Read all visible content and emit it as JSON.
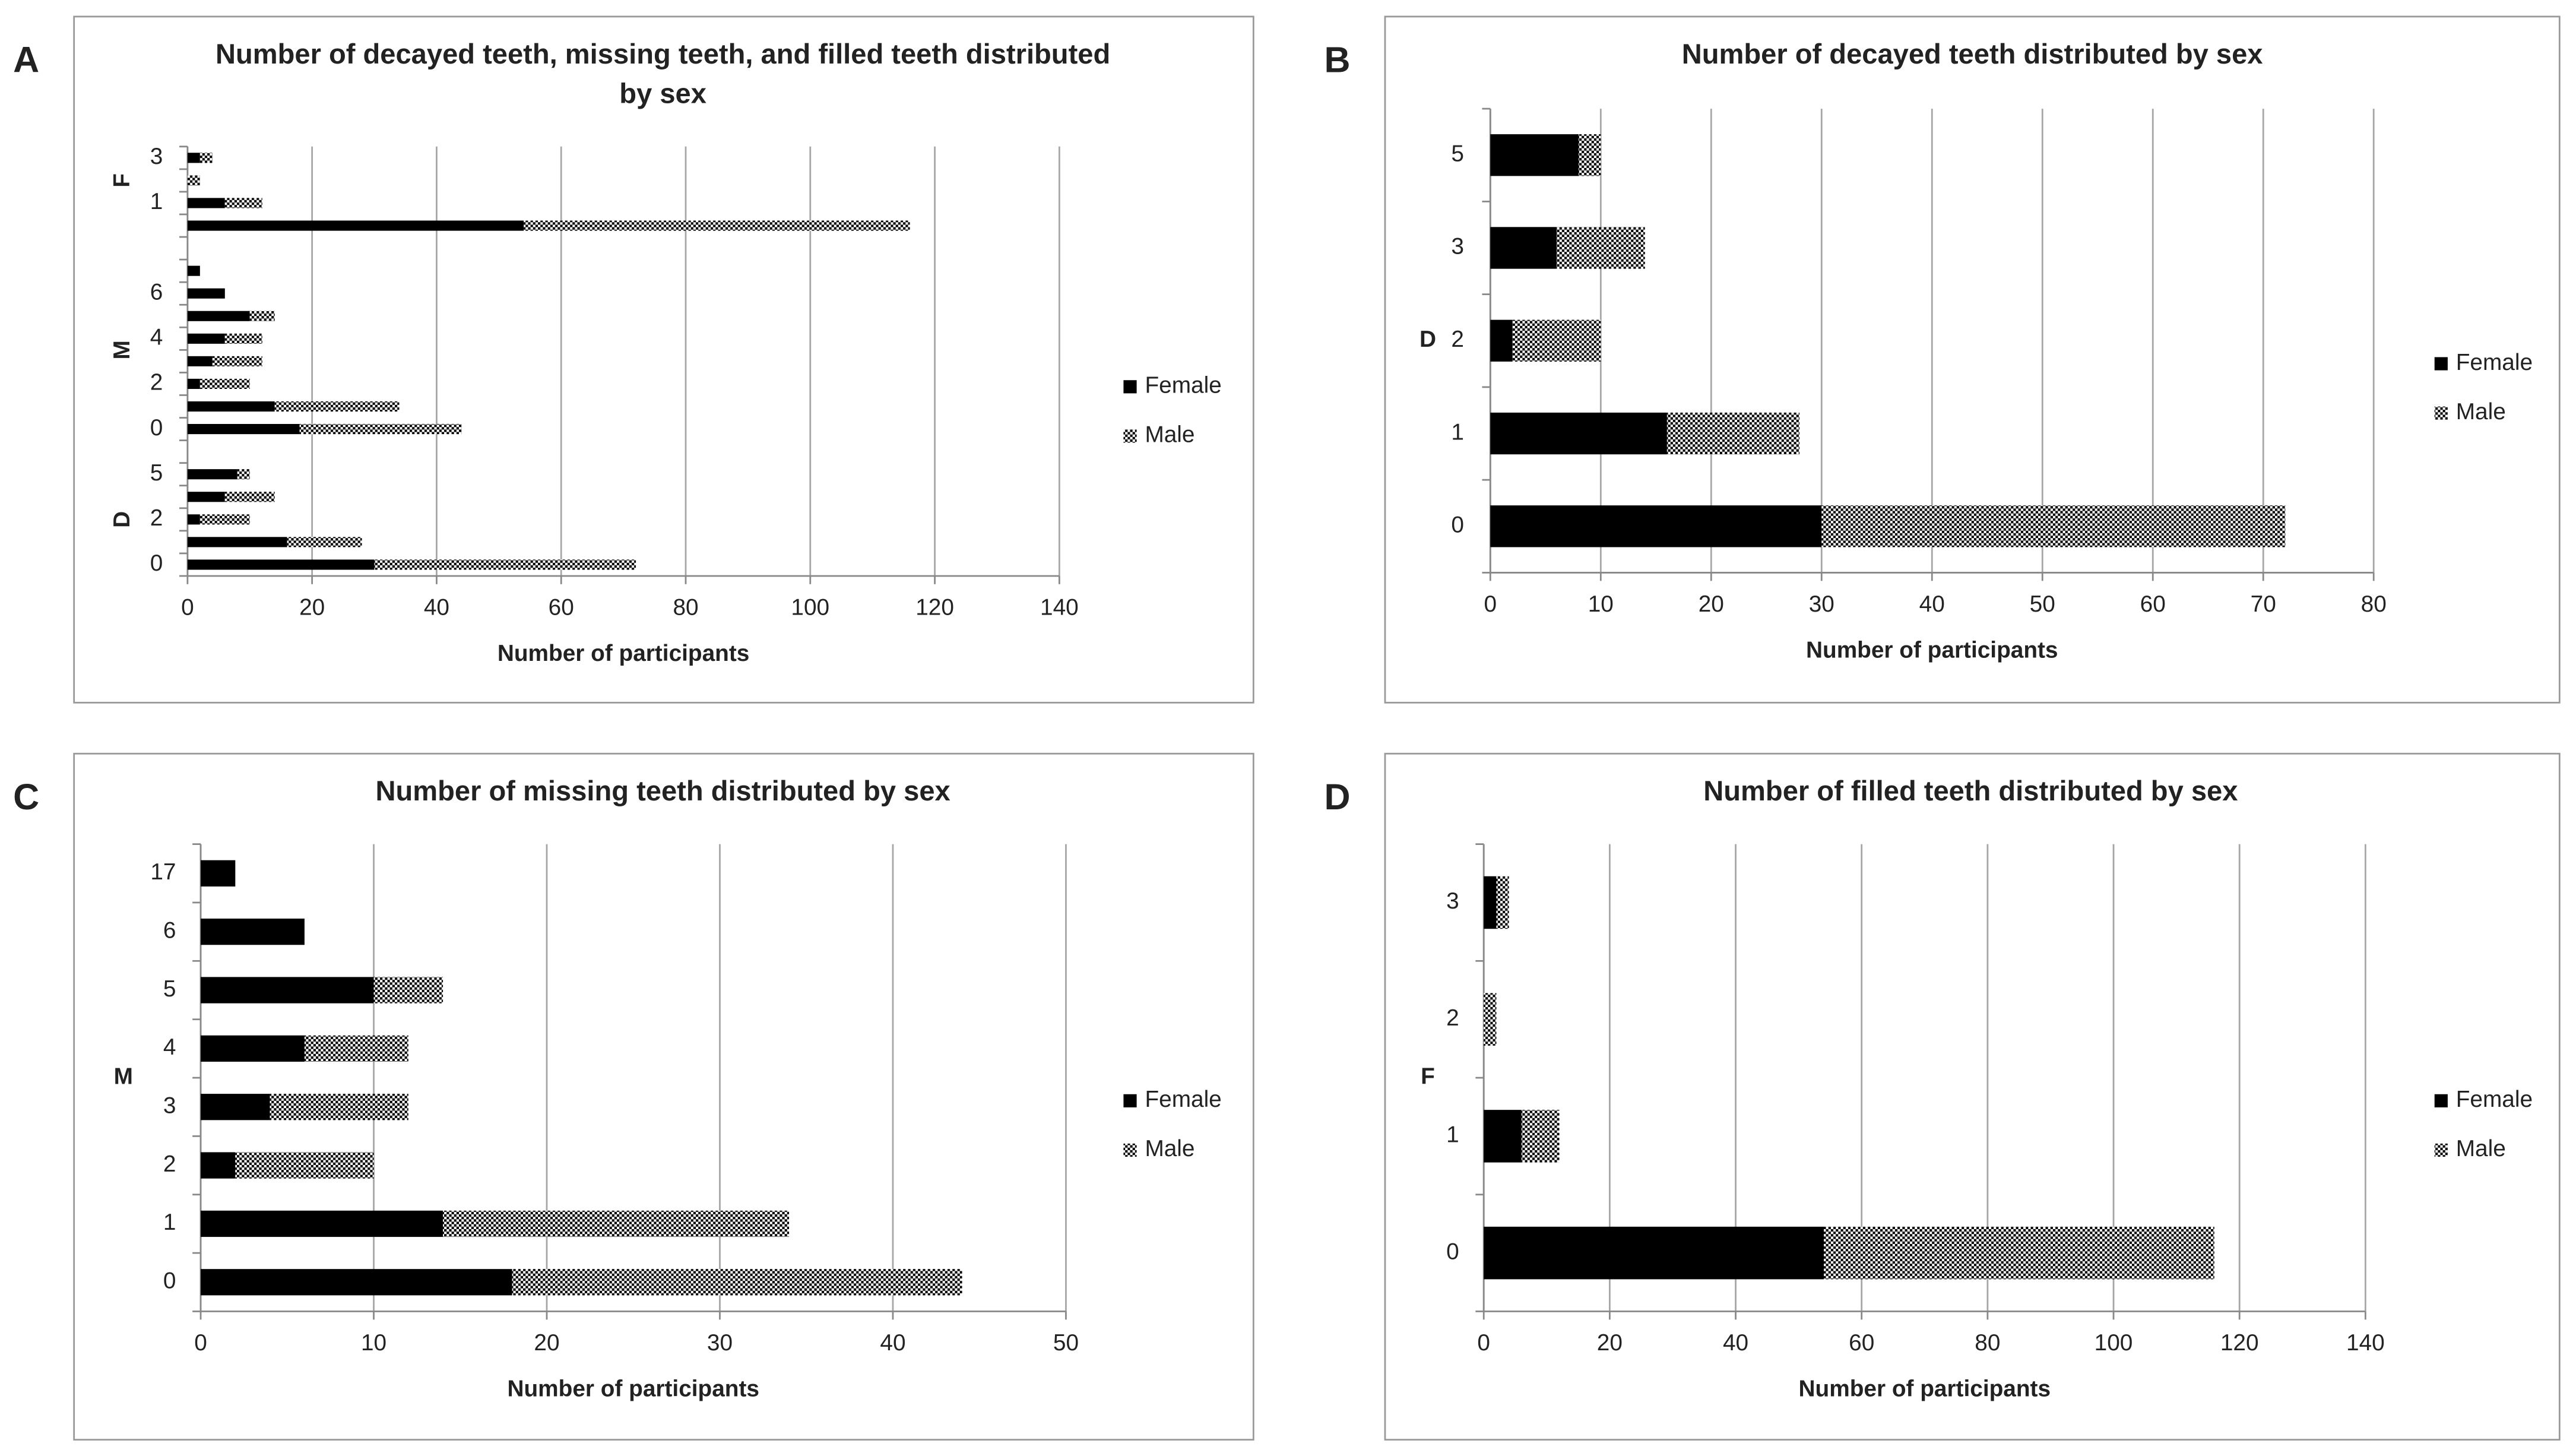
{
  "chart_data": [
    {
      "type": "bar",
      "panel": "A",
      "orientation": "horizontal",
      "stacked": true,
      "title": [
        "Number of decayed teeth, missing teeth, and filled teeth distributed",
        "by sex"
      ],
      "categories": [
        "0",
        null,
        "2",
        null,
        "5",
        null,
        "0",
        null,
        "2",
        null,
        "4",
        null,
        "6",
        null,
        null,
        null,
        "1",
        null,
        "3"
      ],
      "group_labels": [
        "D",
        "M",
        "F"
      ],
      "series": [
        {
          "name": "Female",
          "color": "#000000",
          "fill": "solid",
          "values": [
            30,
            16,
            2,
            6,
            8,
            null,
            18,
            14,
            2,
            4,
            6,
            10,
            6,
            2,
            null,
            54,
            6,
            0,
            2
          ]
        },
        {
          "name": "Male",
          "color": "#000000",
          "fill": "checker",
          "values": [
            42,
            12,
            8,
            8,
            2,
            null,
            26,
            20,
            8,
            8,
            6,
            4,
            0,
            0,
            null,
            62,
            6,
            2,
            2
          ]
        }
      ],
      "xlim": [
        0,
        140
      ],
      "xticks": [
        0,
        20,
        40,
        60,
        80,
        100,
        120,
        140
      ],
      "xlabel": "Number of participants",
      "grid": true,
      "legend": "right"
    },
    {
      "type": "bar",
      "panel": "B",
      "orientation": "horizontal",
      "stacked": true,
      "title": "Number of decayed teeth distributed by sex",
      "categories": [
        "0",
        "1",
        "2",
        "3",
        "5"
      ],
      "ylabel": "D",
      "series": [
        {
          "name": "Female",
          "color": "#000000",
          "fill": "solid",
          "values": [
            30,
            16,
            2,
            6,
            8
          ]
        },
        {
          "name": "Male",
          "color": "#000000",
          "fill": "checker",
          "values": [
            42,
            12,
            8,
            8,
            2
          ]
        }
      ],
      "xlim": [
        0,
        80
      ],
      "xticks": [
        0,
        10,
        20,
        30,
        40,
        50,
        60,
        70,
        80
      ],
      "xlabel": "Number of participants",
      "grid": true,
      "legend": "right"
    },
    {
      "type": "bar",
      "panel": "C",
      "orientation": "horizontal",
      "stacked": true,
      "title": "Number of missing teeth distributed by sex",
      "categories": [
        "0",
        "1",
        "2",
        "3",
        "4",
        "5",
        "6",
        "17"
      ],
      "ylabel": "M",
      "series": [
        {
          "name": "Female",
          "color": "#000000",
          "fill": "solid",
          "values": [
            18,
            14,
            2,
            4,
            6,
            10,
            6,
            2
          ]
        },
        {
          "name": "Male",
          "color": "#000000",
          "fill": "checker",
          "values": [
            26,
            20,
            8,
            8,
            6,
            4,
            0,
            0
          ]
        }
      ],
      "xlim": [
        0,
        50
      ],
      "xticks": [
        0,
        10,
        20,
        30,
        40,
        50
      ],
      "xlabel": "Number of participants",
      "grid": true,
      "legend": "right"
    },
    {
      "type": "bar",
      "panel": "D",
      "orientation": "horizontal",
      "stacked": true,
      "title": "Number of filled teeth distributed by sex",
      "categories": [
        "0",
        "1",
        "2",
        "3"
      ],
      "ylabel": "F",
      "series": [
        {
          "name": "Female",
          "color": "#000000",
          "fill": "solid",
          "values": [
            54,
            6,
            0,
            2
          ]
        },
        {
          "name": "Male",
          "color": "#000000",
          "fill": "checker",
          "values": [
            62,
            6,
            2,
            2
          ]
        }
      ],
      "xlim": [
        0,
        140
      ],
      "xticks": [
        0,
        20,
        40,
        60,
        80,
        100,
        120,
        140
      ],
      "xlabel": "Number of participants",
      "grid": true,
      "legend": "right"
    }
  ]
}
